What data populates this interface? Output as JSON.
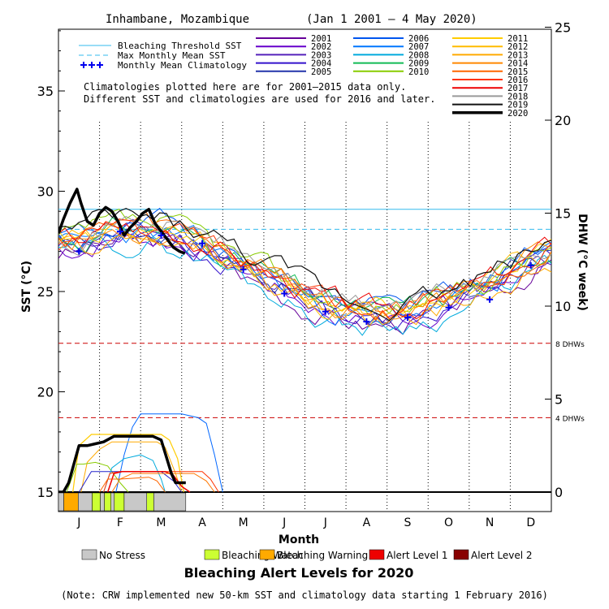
{
  "chart_data": {
    "type": "line",
    "title": "Inhambane, Mozambique",
    "date_range": "(Jan 1 2001 – 4 May 2020)",
    "xlabel": "Month",
    "ylabel_left": "SST (°C)",
    "ylabel_right": "DHW (°C week)",
    "months": [
      "J",
      "F",
      "M",
      "A",
      "M",
      "J",
      "J",
      "A",
      "S",
      "O",
      "N",
      "D"
    ],
    "sst_axis": {
      "min": 14,
      "max": 38.5,
      "ticks": [
        15,
        20,
        25,
        30,
        35
      ]
    },
    "dhw_axis": {
      "ticks": [
        0,
        5,
        10,
        15,
        20,
        25
      ]
    },
    "bleaching_threshold_sst": 29.1,
    "max_monthly_mean_sst": 28.1,
    "dhw_reference_lines": [
      {
        "value": 4,
        "label": "4 DHWs",
        "color": "#cc0000"
      },
      {
        "value": 8,
        "label": "8 DHWs",
        "color": "#cc0000"
      }
    ],
    "monthly_mean_climatology": [
      {
        "month": 1,
        "sst": 27.0
      },
      {
        "month": 2,
        "sst": 28.0
      },
      {
        "month": 3,
        "sst": 27.8
      },
      {
        "month": 4,
        "sst": 27.4
      },
      {
        "month": 5,
        "sst": 26.1
      },
      {
        "month": 6,
        "sst": 24.9
      },
      {
        "month": 7,
        "sst": 24.0
      },
      {
        "month": 8,
        "sst": 23.5
      },
      {
        "month": 9,
        "sst": 23.7
      },
      {
        "month": 10,
        "sst": 24.2
      },
      {
        "month": 11,
        "sst": 24.6
      },
      {
        "month": 12,
        "sst": 26.3
      }
    ],
    "legend_left": [
      {
        "label": "Bleaching Threshold SST",
        "style": "solid",
        "color": "#33bbee"
      },
      {
        "label": "Max Monthly Mean SST",
        "style": "dashed",
        "color": "#33bbee"
      },
      {
        "label": "Monthly Mean Climatology",
        "style": "plus",
        "color": "#0000ee"
      }
    ],
    "notes": [
      "Climatologies plotted here are for 2001–2015 data only.",
      "Different SST and climatologies are used for 2016 and later."
    ],
    "series": [
      {
        "name": "2001",
        "color": "#660099",
        "seed": 3,
        "offset": -0.5
      },
      {
        "name": "2002",
        "color": "#6600cc",
        "seed": 7,
        "offset": -0.3
      },
      {
        "name": "2003",
        "color": "#5522bb",
        "seed": 11,
        "offset": 0.0
      },
      {
        "name": "2004",
        "color": "#3311cc",
        "seed": 13,
        "offset": -0.2
      },
      {
        "name": "2005",
        "color": "#2233aa",
        "seed": 17,
        "offset": 0.1
      },
      {
        "name": "2006",
        "color": "#0055ee",
        "seed": 19,
        "offset": 0.4
      },
      {
        "name": "2007",
        "color": "#0077ff",
        "seed": 23,
        "offset": -0.1
      },
      {
        "name": "2008",
        "color": "#00aadd",
        "seed": 29,
        "offset": -0.6
      },
      {
        "name": "2009",
        "color": "#11bb55",
        "seed": 31,
        "offset": 0.2
      },
      {
        "name": "2010",
        "color": "#88cc00",
        "seed": 37,
        "offset": 0.3
      },
      {
        "name": "2011",
        "color": "#ffcc00",
        "seed": 41,
        "offset": 0.2
      },
      {
        "name": "2012",
        "color": "#ffbb00",
        "seed": 43,
        "offset": 0.0
      },
      {
        "name": "2013",
        "color": "#ffaa00",
        "seed": 47,
        "offset": -0.4
      },
      {
        "name": "2014",
        "color": "#ff8800",
        "seed": 53,
        "offset": 0.1
      },
      {
        "name": "2015",
        "color": "#ff6600",
        "seed": 59,
        "offset": 0.4
      },
      {
        "name": "2016",
        "color": "#ff3300",
        "seed": 61,
        "offset": 0.1
      },
      {
        "name": "2017",
        "color": "#ee0000",
        "seed": 67,
        "offset": 0.3
      },
      {
        "name": "2018",
        "color": "#999999",
        "seed": 71,
        "offset": 0.5
      },
      {
        "name": "2019",
        "color": "#111111",
        "seed": 73,
        "offset": 0.6,
        "width": 1.2
      },
      {
        "name": "2020",
        "color": "#000000",
        "seed": 79,
        "offset": 0,
        "width": 3.5,
        "partial": true
      }
    ],
    "sst_2020": [
      [
        0,
        27.9
      ],
      [
        0.12,
        28.6
      ],
      [
        0.28,
        29.4
      ],
      [
        0.45,
        30.1
      ],
      [
        0.55,
        29.4
      ],
      [
        0.7,
        28.5
      ],
      [
        0.85,
        28.3
      ],
      [
        1.0,
        28.9
      ],
      [
        1.15,
        29.2
      ],
      [
        1.3,
        29.0
      ],
      [
        1.45,
        28.5
      ],
      [
        1.6,
        27.8
      ],
      [
        1.75,
        28.2
      ],
      [
        1.9,
        28.5
      ],
      [
        2.05,
        28.9
      ],
      [
        2.2,
        29.1
      ],
      [
        2.35,
        28.4
      ],
      [
        2.5,
        28.0
      ],
      [
        2.65,
        27.6
      ],
      [
        2.8,
        27.2
      ],
      [
        2.95,
        27.0
      ],
      [
        3.08,
        26.9
      ]
    ],
    "dhw_series": [
      {
        "name": "2020",
        "color": "#000000",
        "width": 3.5,
        "points": [
          [
            0,
            0
          ],
          [
            0.12,
            0
          ],
          [
            0.25,
            0.5
          ],
          [
            0.5,
            2.5
          ],
          [
            0.7,
            2.5
          ],
          [
            0.9,
            2.6
          ],
          [
            1.1,
            2.7
          ],
          [
            1.35,
            3.0
          ],
          [
            1.6,
            3.0
          ],
          [
            2.0,
            3.0
          ],
          [
            2.3,
            3.0
          ],
          [
            2.5,
            2.8
          ],
          [
            2.75,
            1.0
          ],
          [
            2.85,
            0.5
          ],
          [
            3.1,
            0.5
          ]
        ]
      },
      {
        "name": "2006",
        "color": "#0066ff",
        "width": 1,
        "points": [
          [
            1.4,
            0
          ],
          [
            1.6,
            2.0
          ],
          [
            1.8,
            3.5
          ],
          [
            2.0,
            4.2
          ],
          [
            2.3,
            4.2
          ],
          [
            3.0,
            4.2
          ],
          [
            3.4,
            4.0
          ],
          [
            3.6,
            3.7
          ],
          [
            3.8,
            2.0
          ],
          [
            4.0,
            0
          ]
        ]
      },
      {
        "name": "2011",
        "color": "#ffcc00",
        "width": 1.2,
        "points": [
          [
            0.35,
            0
          ],
          [
            0.5,
            2.5
          ],
          [
            0.8,
            3.1
          ],
          [
            1.1,
            3.1
          ],
          [
            2.5,
            3.1
          ],
          [
            2.7,
            2.8
          ],
          [
            2.9,
            1.8
          ],
          [
            3.05,
            0
          ]
        ]
      },
      {
        "name": "2012",
        "color": "#ffaa00",
        "width": 1,
        "points": [
          [
            0.55,
            0
          ],
          [
            0.7,
            1.6
          ],
          [
            1.0,
            2.3
          ],
          [
            1.3,
            2.7
          ],
          [
            2.4,
            2.7
          ],
          [
            2.6,
            2.4
          ],
          [
            2.85,
            1.0
          ],
          [
            3.0,
            0
          ]
        ]
      },
      {
        "name": "2010",
        "color": "#88cc00",
        "width": 1,
        "points": [
          [
            0.2,
            0
          ],
          [
            0.45,
            1.5
          ],
          [
            0.6,
            1.5
          ],
          [
            0.9,
            1.6
          ],
          [
            1.2,
            1.4
          ],
          [
            1.5,
            0.5
          ],
          [
            1.7,
            0
          ]
        ]
      },
      {
        "name": "2004",
        "color": "#2222cc",
        "width": 1,
        "points": [
          [
            0.5,
            0
          ],
          [
            0.8,
            1.1
          ],
          [
            1.2,
            1.1
          ],
          [
            2.0,
            1.1
          ],
          [
            2.5,
            1.1
          ],
          [
            2.8,
            0.6
          ],
          [
            3.0,
            0
          ]
        ]
      },
      {
        "name": "2008",
        "color": "#00aadd",
        "width": 1,
        "points": [
          [
            1.1,
            0
          ],
          [
            1.3,
            1.3
          ],
          [
            1.6,
            1.8
          ],
          [
            2.0,
            2.0
          ],
          [
            2.3,
            1.7
          ],
          [
            2.5,
            0.7
          ],
          [
            2.6,
            0
          ]
        ]
      },
      {
        "name": "2016",
        "color": "#ff3300",
        "width": 1,
        "points": [
          [
            1.1,
            0
          ],
          [
            1.25,
            1.0
          ],
          [
            1.5,
            1.1
          ],
          [
            3.5,
            1.1
          ],
          [
            3.7,
            0.7
          ],
          [
            3.9,
            0
          ]
        ]
      },
      {
        "name": "2017",
        "color": "#ee0000",
        "width": 1.5,
        "points": [
          [
            1.2,
            0
          ],
          [
            1.35,
            1.0
          ],
          [
            1.55,
            1.1
          ],
          [
            2.6,
            1.1
          ],
          [
            2.8,
            0.9
          ],
          [
            3.0,
            0.3
          ],
          [
            3.2,
            0
          ]
        ]
      },
      {
        "name": "2014",
        "color": "#ff7700",
        "width": 1,
        "points": [
          [
            1.3,
            0
          ],
          [
            1.5,
            0.7
          ],
          [
            1.8,
            1.0
          ],
          [
            3.3,
            1.0
          ],
          [
            3.6,
            0.6
          ],
          [
            3.8,
            0
          ]
        ]
      },
      {
        "name": "2015",
        "color": "#ff6600",
        "width": 1,
        "points": [
          [
            1.0,
            0
          ],
          [
            1.2,
            0.7
          ],
          [
            1.5,
            0.7
          ],
          [
            2.2,
            0.8
          ],
          [
            2.4,
            0.6
          ],
          [
            2.6,
            0
          ]
        ]
      }
    ],
    "alert_bar_2020": [
      {
        "from": 0.0,
        "to": 0.13,
        "level": "No Stress"
      },
      {
        "from": 0.13,
        "to": 0.48,
        "level": "Bleaching Warning"
      },
      {
        "from": 0.48,
        "to": 0.82,
        "level": "No Stress"
      },
      {
        "from": 0.82,
        "to": 1.02,
        "level": "Bleaching Watch"
      },
      {
        "from": 1.02,
        "to": 1.12,
        "level": "No Stress"
      },
      {
        "from": 1.12,
        "to": 1.28,
        "level": "Bleaching Watch"
      },
      {
        "from": 1.28,
        "to": 1.36,
        "level": "No Stress"
      },
      {
        "from": 1.36,
        "to": 1.6,
        "level": "Bleaching Watch"
      },
      {
        "from": 1.6,
        "to": 2.15,
        "level": "No Stress"
      },
      {
        "from": 2.15,
        "to": 2.32,
        "level": "Bleaching Watch"
      },
      {
        "from": 2.32,
        "to": 3.1,
        "level": "No Stress"
      }
    ],
    "alert_levels": [
      {
        "label": "No Stress",
        "color": "#c8c8c8"
      },
      {
        "label": "Bleaching Watch",
        "color": "#ccff33"
      },
      {
        "label": "Bleaching Warning",
        "color": "#ffaa00"
      },
      {
        "label": "Alert Level 1",
        "color": "#ee0000"
      },
      {
        "label": "Alert Level 2",
        "color": "#880000"
      }
    ],
    "alert_title": "Bleaching Alert Levels for 2020",
    "footnote": "(Note: CRW implemented new 50-km SST and climatology data starting 1 February 2016)"
  }
}
